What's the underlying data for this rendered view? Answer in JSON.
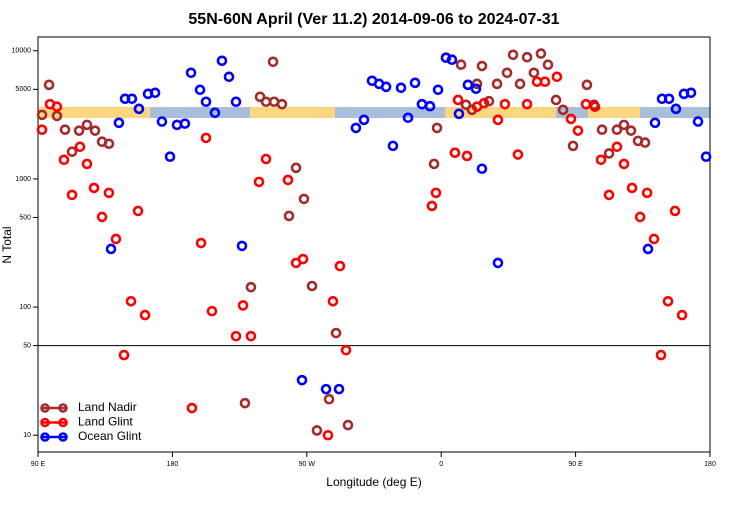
{
  "chart_data": {
    "type": "scatter",
    "title": "55N-60N April (Ver 11.2)   2014-09-06 to 2024-07-31",
    "xlabel": "Longitude (deg E)",
    "ylabel": "N Total",
    "log_y": true,
    "legend": "bottom-left",
    "hline": 50,
    "xlim": [
      -270,
      180
    ],
    "xticks": [
      {
        "value": -270,
        "label": "90 E"
      },
      {
        "value": -180,
        "label": "180"
      },
      {
        "value": -90,
        "label": "90 W"
      },
      0,
      {
        "value": 90,
        "label": "90 E"
      },
      180
    ],
    "ylim": [
      7.4,
      12800
    ],
    "yticks": [
      10,
      50,
      100,
      500,
      1000,
      5000,
      10000
    ],
    "series": [
      {
        "name": "Land Nadir",
        "color": "#a52a2a",
        "x": [
          -267.3,
          -262.6,
          -257.3,
          -251.9,
          -247.2,
          -242.5,
          -237.2,
          -231.8,
          -227.1,
          -222.5,
          -121.3,
          -117.3,
          -111.9,
          -106.6,
          -101.9,
          -97.2,
          -91.9,
          -86.5,
          -112.6,
          -131.4,
          -127.4,
          -70.4,
          -75.1,
          -83.2,
          -62.4,
          -4.8,
          -2.8,
          9.2,
          13.3,
          16.6,
          20.6,
          24.0,
          27.3,
          32.0,
          37.4,
          44.1,
          48.1,
          52.8,
          57.5,
          62.1,
          66.8,
          71.5,
          76.9,
          81.6,
          88.3,
          97.6,
          102.3,
          107.7,
          112.4,
          117.7,
          122.4,
          127.1,
          131.8,
          136.5
        ],
        "values": [
          3160,
          5420,
          3100,
          2420,
          1630,
          2380,
          2640,
          2380,
          1950,
          1880,
          4370,
          4000,
          4000,
          3830,
          514,
          1220,
          698,
          146,
          8200,
          17.8,
          143,
          62.7,
          19.1,
          10.9,
          12,
          1310,
          2500,
          1600,
          7780,
          3790,
          3460,
          5520,
          7600,
          4040,
          5520,
          6730,
          9300,
          5520,
          8900,
          6730,
          9500,
          7780,
          4130,
          3460,
          1810,
          5420,
          3790,
          2420,
          1580,
          2420,
          2640,
          2380,
          1980,
          1920
        ]
      },
      {
        "name": "Land Glint",
        "color": "#ff0000",
        "x": [
          -267.3,
          -262.0,
          -257.3,
          -252.6,
          -247.2,
          -241.9,
          -237.2,
          -232.5,
          -227.1,
          -222.5,
          -217.8,
          -212.4,
          -207.7,
          -203.0,
          -198.3,
          -166.9,
          -160.8,
          -157.5,
          -153.5,
          -137.4,
          -132.7,
          -127.4,
          -122.0,
          -117.3,
          -102.6,
          -97.2,
          -92.5,
          -72.5,
          -67.8,
          -63.7,
          -75.8,
          -6.2,
          -3.5,
          9.2,
          11.3,
          17.3,
          24.0,
          28.7,
          38.0,
          42.7,
          51.4,
          57.5,
          64.2,
          69.5,
          77.5,
          86.9,
          91.6,
          97.0,
          103.0,
          107.0,
          112.4,
          117.7,
          122.4,
          127.8,
          133.2,
          137.9,
          142.5,
          147.2,
          151.9,
          156.6,
          161.3
        ],
        "values": [
          2420,
          3830,
          3660,
          1410,
          750,
          1780,
          1310,
          851,
          505,
          778,
          340,
          42.2,
          111,
          562,
          86.6,
          16.3,
          316,
          2090,
          93,
          59.3,
          103,
          59.3,
          948,
          1430,
          982,
          221,
          237,
          111,
          209,
          46.1,
          10,
          615,
          778,
          1600,
          4130,
          1510,
          3660,
          3900,
          2890,
          3830,
          1550,
          3830,
          5730,
          5730,
          6260,
          2940,
          2380,
          3830,
          3660,
          1410,
          750,
          1780,
          1310,
          851,
          505,
          778,
          340,
          42.2,
          111,
          562,
          86.6
        ]
      },
      {
        "name": "Ocean Glint",
        "color": "#0000ff",
        "x": [
          -221.1,
          -215.8,
          -211.7,
          -207.1,
          -202.4,
          -196.3,
          -191.6,
          -187.0,
          -181.6,
          -176.9,
          -171.6,
          -167.5,
          -161.5,
          -157.5,
          -151.5,
          -146.8,
          -142.1,
          -137.4,
          -133.4,
          -93.2,
          -77.1,
          -68.4,
          -57.1,
          -51.7,
          -46.3,
          -41.6,
          -36.9,
          -32.3,
          -26.9,
          -22.2,
          -17.5,
          -12.9,
          -7.5,
          -2.1,
          3.2,
          7.2,
          11.9,
          17.9,
          23.3,
          27.3,
          38.0,
          138.5,
          143.2,
          147.9,
          152.6,
          157.2,
          162.6,
          167.3,
          172.0,
          177.4
        ],
        "values": [
          284,
          2740,
          4220,
          4220,
          3520,
          4610,
          4700,
          2800,
          1490,
          2640,
          2700,
          6730,
          4960,
          4000,
          3280,
          8350,
          6260,
          4000,
          300,
          26.9,
          22.9,
          22.9,
          2500,
          2890,
          5830,
          5520,
          5230,
          1810,
          5140,
          3000,
          5620,
          3830,
          3690,
          4960,
          8820,
          8510,
          3220,
          5420,
          5050,
          1200,
          221,
          284,
          2740,
          4220,
          4220,
          3520,
          4610,
          4700,
          2800,
          1490
        ]
      }
    ]
  }
}
